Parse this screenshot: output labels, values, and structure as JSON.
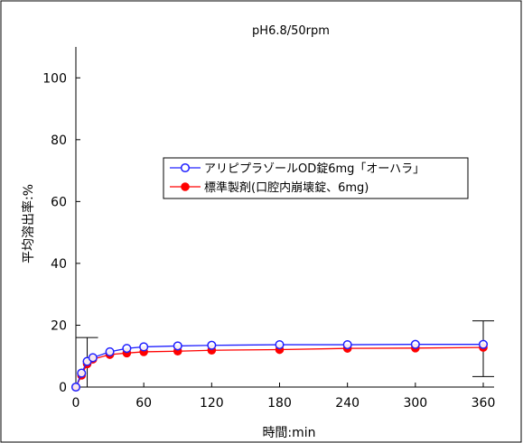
{
  "chart_data": {
    "type": "line",
    "title": "pH6.8/50rpm",
    "xlabel": "時間:min",
    "ylabel": "平均溶出率:%",
    "xlim": [
      0,
      360
    ],
    "ylim": [
      0,
      110
    ],
    "x_ticks": [
      0,
      60,
      120,
      180,
      240,
      300,
      360
    ],
    "y_ticks": [
      0,
      20,
      40,
      60,
      80,
      100
    ],
    "grid": false,
    "legend_position": "upper-middle",
    "series": [
      {
        "name": "アリピプラゾールOD錠6mg「オーハラ」",
        "color": "#2020ff",
        "marker": "open-circle",
        "x": [
          0,
          5,
          10,
          15,
          30,
          45,
          60,
          90,
          120,
          180,
          240,
          300,
          360
        ],
        "y": [
          0,
          4.5,
          8.3,
          9.5,
          11.4,
          12.5,
          13.0,
          13.3,
          13.5,
          13.7,
          13.7,
          13.8,
          13.8
        ]
      },
      {
        "name": "標準製剤(口腔内崩壊錠、6mg)",
        "color": "#ff0000",
        "marker": "filled-circle",
        "x": [
          0,
          5,
          10,
          15,
          30,
          45,
          60,
          90,
          120,
          180,
          240,
          300,
          360
        ],
        "y": [
          0,
          3.8,
          7.5,
          9.0,
          10.5,
          11.0,
          11.4,
          11.6,
          11.9,
          12.1,
          12.5,
          12.6,
          12.8
        ]
      }
    ],
    "ranges": [
      {
        "x": 10,
        "low": 0,
        "high": 16.0
      },
      {
        "x": 360,
        "low": 3.4,
        "high": 21.4
      }
    ]
  }
}
